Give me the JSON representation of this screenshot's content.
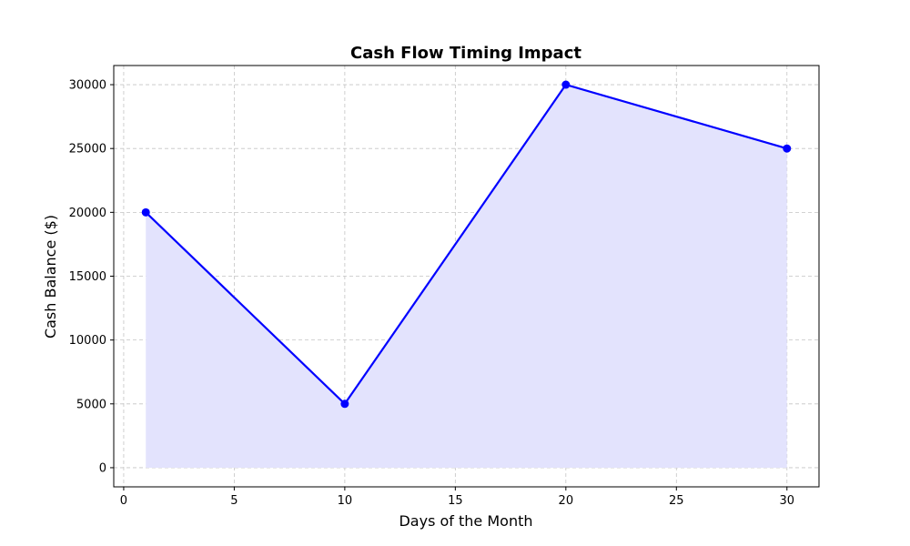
{
  "chart_data": {
    "type": "line",
    "title": "Cash Flow Timing Impact",
    "xlabel": "Days of the Month",
    "ylabel": "Cash Balance ($)",
    "x": [
      1,
      10,
      20,
      30
    ],
    "series": [
      {
        "values": [
          20000,
          5000,
          30000,
          25000
        ]
      }
    ],
    "xlim": [
      -0.45,
      31.45
    ],
    "ylim": [
      -1500,
      31500
    ],
    "xticks": [
      0,
      5,
      10,
      15,
      20,
      25,
      30
    ],
    "yticks": [
      0,
      5000,
      10000,
      15000,
      20000,
      25000,
      30000
    ],
    "grid": true,
    "fill_under": true,
    "colors": {
      "line": "#0000ff",
      "fill": "#e3e3fd",
      "grid": "#c4c4c4"
    }
  }
}
